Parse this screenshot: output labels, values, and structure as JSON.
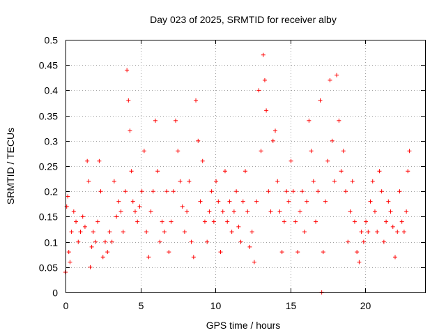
{
  "chart_data": {
    "type": "scatter",
    "title": "Day 023 of 2025, SRMTID for receiver alby",
    "xlabel": "GPS time / hours",
    "ylabel": "SRMTID / TECUs",
    "xlim": [
      0,
      24
    ],
    "ylim": [
      0,
      0.5
    ],
    "x_ticks": [
      "0",
      "5",
      "10",
      "15",
      "20"
    ],
    "y_ticks": [
      "0",
      "0.05",
      "0.1",
      "0.15",
      "0.2",
      "0.25",
      "0.3",
      "0.35",
      "0.4",
      "0.45",
      "0.5"
    ],
    "grid": true,
    "marker": "+",
    "colors": {
      "series": "#ff0000",
      "grid": "#a0a0a0",
      "axis": "#000000"
    },
    "series": [
      {
        "x": [
          0.0,
          0.08,
          0.15,
          0.22,
          0.3,
          0.4,
          0.55,
          0.7,
          0.85,
          1.0,
          1.15,
          1.3,
          1.45,
          1.55,
          1.65,
          1.75,
          1.85,
          2.0,
          2.15,
          2.25,
          2.35,
          2.5,
          2.65,
          2.8,
          2.95,
          3.1,
          3.25,
          3.4,
          3.55,
          3.7,
          3.85,
          4.0,
          4.1,
          4.2,
          4.3,
          4.4,
          4.5,
          4.65,
          4.8,
          4.95,
          5.1,
          5.25,
          5.4,
          5.55,
          5.7,
          5.85,
          6.0,
          6.15,
          6.3,
          6.45,
          6.6,
          6.75,
          6.9,
          7.05,
          7.2,
          7.35,
          7.5,
          7.65,
          7.8,
          7.95,
          8.1,
          8.25,
          8.4,
          8.55,
          8.7,
          8.85,
          9.0,
          9.15,
          9.3,
          9.45,
          9.6,
          9.75,
          9.9,
          10.05,
          10.2,
          10.35,
          10.5,
          10.65,
          10.8,
          10.95,
          11.1,
          11.25,
          11.4,
          11.55,
          11.7,
          11.85,
          12.0,
          12.15,
          12.3,
          12.45,
          12.6,
          12.75,
          12.9,
          13.05,
          13.2,
          13.3,
          13.4,
          13.55,
          13.7,
          13.85,
          14.0,
          14.15,
          14.3,
          14.45,
          14.6,
          14.75,
          14.9,
          15.05,
          15.2,
          15.35,
          15.5,
          15.65,
          15.8,
          15.95,
          16.1,
          16.25,
          16.4,
          16.55,
          16.7,
          16.85,
          17.0,
          17.1,
          17.2,
          17.35,
          17.5,
          17.65,
          17.8,
          17.95,
          18.1,
          18.25,
          18.4,
          18.55,
          18.7,
          18.85,
          19.0,
          19.15,
          19.3,
          19.45,
          19.6,
          19.75,
          19.9,
          20.05,
          20.2,
          20.35,
          20.5,
          20.65,
          20.8,
          20.95,
          21.1,
          21.25,
          21.4,
          21.55,
          21.7,
          21.85,
          22.0,
          22.15,
          22.3,
          22.45,
          22.6,
          22.75,
          22.85,
          22.95
        ],
        "y": [
          0.04,
          0.17,
          0.19,
          0.08,
          0.06,
          0.12,
          0.16,
          0.14,
          0.1,
          0.12,
          0.15,
          0.13,
          0.26,
          0.22,
          0.05,
          0.09,
          0.12,
          0.1,
          0.14,
          0.26,
          0.2,
          0.07,
          0.1,
          0.08,
          0.12,
          0.1,
          0.22,
          0.15,
          0.18,
          0.16,
          0.12,
          0.2,
          0.44,
          0.38,
          0.32,
          0.24,
          0.18,
          0.16,
          0.14,
          0.17,
          0.2,
          0.28,
          0.12,
          0.07,
          0.16,
          0.2,
          0.34,
          0.24,
          0.1,
          0.14,
          0.12,
          0.2,
          0.08,
          0.14,
          0.2,
          0.34,
          0.28,
          0.22,
          0.17,
          0.12,
          0.16,
          0.22,
          0.1,
          0.07,
          0.38,
          0.3,
          0.18,
          0.26,
          0.14,
          0.1,
          0.16,
          0.2,
          0.14,
          0.22,
          0.18,
          0.08,
          0.16,
          0.24,
          0.14,
          0.18,
          0.12,
          0.16,
          0.2,
          0.13,
          0.1,
          0.18,
          0.24,
          0.16,
          0.09,
          0.12,
          0.06,
          0.18,
          0.4,
          0.28,
          0.47,
          0.42,
          0.36,
          0.2,
          0.16,
          0.3,
          0.32,
          0.22,
          0.16,
          0.08,
          0.14,
          0.2,
          0.18,
          0.26,
          0.2,
          0.14,
          0.08,
          0.16,
          0.2,
          0.12,
          0.18,
          0.34,
          0.28,
          0.22,
          0.14,
          0.2,
          0.38,
          0.0,
          0.08,
          0.18,
          0.26,
          0.42,
          0.3,
          0.22,
          0.43,
          0.34,
          0.24,
          0.28,
          0.2,
          0.1,
          0.16,
          0.22,
          0.14,
          0.08,
          0.06,
          0.12,
          0.1,
          0.14,
          0.12,
          0.18,
          0.22,
          0.16,
          0.12,
          0.24,
          0.2,
          0.1,
          0.14,
          0.18,
          0.16,
          0.13,
          0.07,
          0.12,
          0.2,
          0.14,
          0.12,
          0.16,
          0.24,
          0.28
        ]
      }
    ]
  }
}
